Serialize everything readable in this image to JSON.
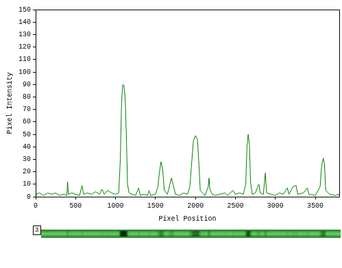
{
  "chart_data": {
    "type": "line",
    "x_label": "Pixel Position",
    "y_label": "Pixel Intensity",
    "x": [
      0,
      50,
      100,
      150,
      200,
      250,
      300,
      350,
      390,
      400,
      410,
      450,
      500,
      550,
      580,
      600,
      650,
      700,
      750,
      800,
      830,
      860,
      900,
      950,
      1000,
      1040,
      1060,
      1075,
      1090,
      1105,
      1120,
      1135,
      1150,
      1170,
      1200,
      1250,
      1290,
      1310,
      1350,
      1400,
      1420,
      1440,
      1500,
      1530,
      1550,
      1570,
      1590,
      1610,
      1650,
      1680,
      1700,
      1720,
      1750,
      1800,
      1850,
      1900,
      1930,
      1950,
      1975,
      2000,
      2025,
      2045,
      2060,
      2090,
      2120,
      2160,
      2170,
      2180,
      2210,
      2250,
      2300,
      2370,
      2400,
      2470,
      2500,
      2550,
      2600,
      2630,
      2645,
      2660,
      2675,
      2690,
      2710,
      2750,
      2780,
      2795,
      2810,
      2850,
      2875,
      2890,
      2950,
      3000,
      3050,
      3100,
      3150,
      3170,
      3220,
      3260,
      3280,
      3350,
      3400,
      3420,
      3500,
      3560,
      3580,
      3600,
      3615,
      3630,
      3680,
      3750,
      3800
    ],
    "values": [
      2,
      3,
      1,
      3,
      2,
      3,
      1,
      2,
      1,
      12,
      2,
      3,
      2,
      1,
      9,
      2,
      3,
      2,
      4,
      2,
      6,
      2,
      5,
      3,
      2,
      3,
      30,
      75,
      90,
      89,
      80,
      50,
      10,
      3,
      2,
      1,
      7,
      1,
      2,
      1,
      5,
      1,
      2,
      8,
      20,
      28,
      22,
      5,
      2,
      10,
      15,
      10,
      2,
      1,
      3,
      2,
      8,
      25,
      45,
      49,
      46,
      25,
      5,
      3,
      1,
      8,
      15,
      6,
      2,
      1,
      2,
      3,
      1,
      5,
      2,
      3,
      2,
      10,
      40,
      50,
      42,
      12,
      2,
      3,
      8,
      10,
      3,
      2,
      19,
      3,
      2,
      1,
      3,
      2,
      7,
      2,
      8,
      9,
      2,
      3,
      7,
      2,
      1,
      8,
      25,
      31,
      26,
      5,
      2,
      1,
      2
    ],
    "color": "#008000",
    "xlim": [
      0,
      3800
    ],
    "xticks": [
      0,
      500,
      1000,
      1500,
      2000,
      2500,
      3000,
      3500
    ],
    "ylim": [
      0,
      150
    ],
    "yticks": [
      0,
      10,
      20,
      30,
      40,
      50,
      60,
      70,
      80,
      90,
      100,
      110,
      120,
      130,
      140,
      150
    ],
    "grid": false
  },
  "strip": {
    "label": "3"
  }
}
